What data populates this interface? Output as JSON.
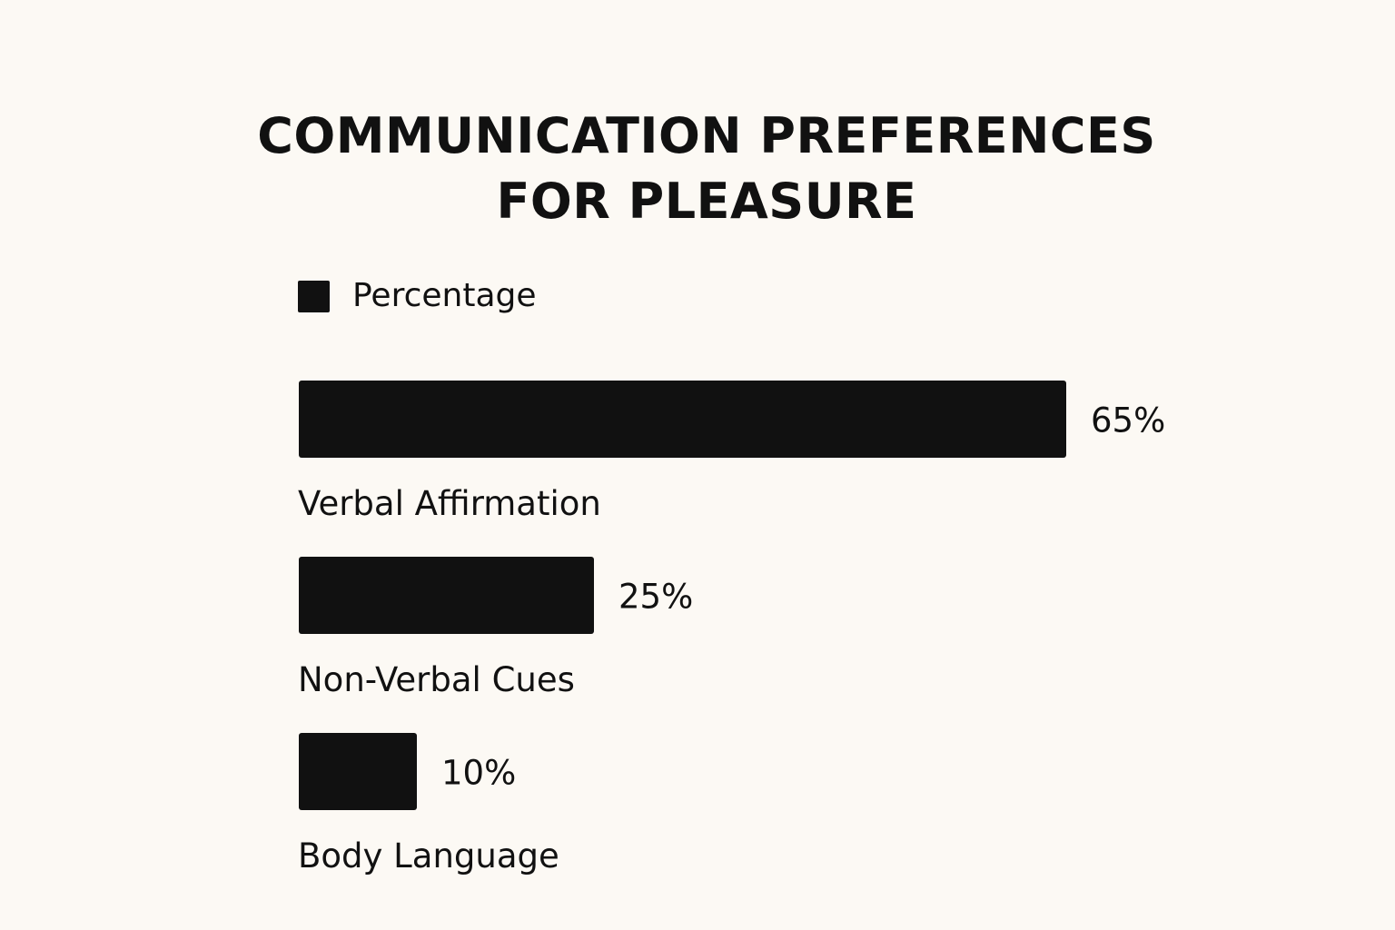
{
  "chart_data": {
    "type": "bar",
    "orientation": "horizontal",
    "title": [
      "COMMUNICATION PREFERENCES",
      "FOR PLEASURE"
    ],
    "legend": {
      "position": "top-left",
      "entries": [
        {
          "name": "Percentage",
          "color": "#111111"
        }
      ]
    },
    "categories": [
      "Verbal Affirmation",
      "Non-Verbal Cues",
      "Body Language"
    ],
    "series": [
      {
        "name": "Percentage",
        "values": [
          65,
          25,
          10
        ],
        "color": "#111111"
      }
    ],
    "value_labels": [
      "65%",
      "25%",
      "10%"
    ],
    "grid": false
  },
  "colors": {
    "background": "#fcf9f4",
    "bar": "#111111",
    "text": "#111111"
  }
}
